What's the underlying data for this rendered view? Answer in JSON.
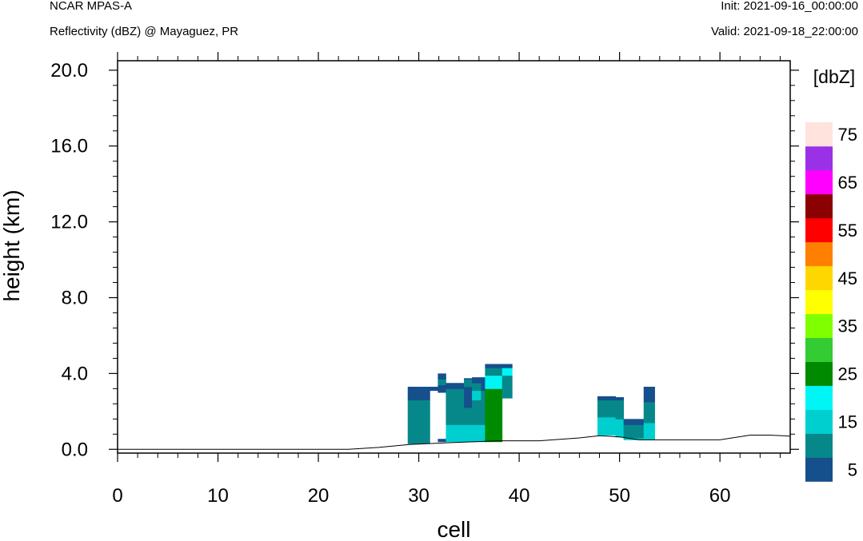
{
  "header": {
    "model": "NCAR MPAS-A",
    "subtitle": "Reflectivity (dBZ) @ Mayaguez, PR",
    "init": "Init: 2021-09-16_00:00:00",
    "valid": "Valid: 2021-09-18_22:00:00"
  },
  "chart_data": {
    "type": "heatmap",
    "xlabel": "cell",
    "ylabel": "height (km)",
    "xlim": [
      0,
      67
    ],
    "ylim": [
      -0.2,
      20.5
    ],
    "xticks": [
      0,
      10,
      20,
      30,
      40,
      50,
      60
    ],
    "yticks": [
      0.0,
      4.0,
      8.0,
      12.0,
      16.0,
      20.0
    ],
    "ytick_labels": [
      "0.0",
      "4.0",
      "8.0",
      "12.0",
      "16.0",
      "20.0"
    ],
    "colorbar": {
      "title": "[dbZ]",
      "levels": [
        5,
        10,
        15,
        20,
        25,
        30,
        35,
        40,
        45,
        50,
        55,
        60,
        65,
        70,
        75
      ],
      "labels": [
        "5",
        "15",
        "25",
        "35",
        "45",
        "55",
        "65",
        "75"
      ],
      "colors": [
        "#154f8c",
        "#06888a",
        "#00cfd0",
        "#00f5f5",
        "#008a00",
        "#33cc33",
        "#7fff00",
        "#ffff00",
        "#ffd700",
        "#ff8000",
        "#ff0000",
        "#8b0000",
        "#ff00ff",
        "#9a31e6",
        "#ffe3dc"
      ]
    },
    "terrain": [
      [
        0,
        0
      ],
      [
        23,
        0
      ],
      [
        26,
        0.1
      ],
      [
        29,
        0.25
      ],
      [
        33,
        0.35
      ],
      [
        38,
        0.45
      ],
      [
        42,
        0.45
      ],
      [
        46,
        0.6
      ],
      [
        48,
        0.72
      ],
      [
        50,
        0.65
      ],
      [
        52,
        0.5
      ],
      [
        60,
        0.5
      ],
      [
        63,
        0.75
      ],
      [
        65,
        0.75
      ],
      [
        67,
        0.7
      ]
    ],
    "columns": [
      {
        "x": [
          28.9,
          31.1
        ],
        "layers": [
          [
            0.3,
            2.6,
            10
          ],
          [
            2.6,
            3.3,
            5
          ]
        ]
      },
      {
        "x": [
          31.1,
          31.9
        ],
        "layers": [
          [
            3.1,
            3.3,
            5
          ]
        ]
      },
      {
        "x": [
          31.9,
          32.7
        ],
        "layers": [
          [
            0.4,
            0.55,
            5
          ],
          [
            3.0,
            3.4,
            5
          ],
          [
            3.4,
            3.7,
            10
          ],
          [
            3.7,
            4.0,
            5
          ]
        ]
      },
      {
        "x": [
          32.7,
          34.5
        ],
        "layers": [
          [
            0.4,
            1.3,
            15
          ],
          [
            1.3,
            3.2,
            10
          ],
          [
            3.2,
            3.5,
            5
          ]
        ]
      },
      {
        "x": [
          34.5,
          35.3
        ],
        "layers": [
          [
            0.4,
            1.3,
            15
          ],
          [
            1.3,
            2.2,
            10
          ],
          [
            2.2,
            3.3,
            5
          ],
          [
            3.3,
            3.7,
            10
          ],
          [
            3.7,
            3.75,
            5
          ]
        ]
      },
      {
        "x": [
          35.3,
          36.2
        ],
        "layers": [
          [
            0.4,
            1.3,
            15
          ],
          [
            1.3,
            2.6,
            10
          ],
          [
            2.6,
            3.1,
            15
          ],
          [
            3.1,
            3.5,
            10
          ],
          [
            3.5,
            3.8,
            5
          ]
        ]
      },
      {
        "x": [
          36.2,
          36.6
        ],
        "layers": [
          [
            0.4,
            1.3,
            15
          ],
          [
            1.3,
            3.1,
            10
          ],
          [
            3.1,
            3.8,
            5
          ]
        ]
      },
      {
        "x": [
          36.6,
          38.3
        ],
        "layers": [
          [
            0.4,
            3.2,
            25
          ],
          [
            3.2,
            3.9,
            20
          ],
          [
            3.9,
            4.3,
            10
          ],
          [
            4.3,
            4.5,
            5
          ]
        ]
      },
      {
        "x": [
          38.3,
          39.3
        ],
        "layers": [
          [
            2.7,
            3.9,
            10
          ],
          [
            3.9,
            4.3,
            20
          ],
          [
            4.3,
            4.5,
            5
          ]
        ]
      },
      {
        "x": [
          47.8,
          49.6
        ],
        "layers": [
          [
            0.75,
            1.7,
            15
          ],
          [
            1.7,
            2.6,
            10
          ],
          [
            2.6,
            2.8,
            5
          ]
        ]
      },
      {
        "x": [
          49.6,
          50.4
        ],
        "layers": [
          [
            0.65,
            1.6,
            15
          ],
          [
            1.6,
            2.6,
            10
          ],
          [
            2.6,
            2.75,
            5
          ]
        ]
      },
      {
        "x": [
          50.4,
          52.4
        ],
        "layers": [
          [
            0.5,
            0.6,
            15
          ],
          [
            0.6,
            1.3,
            10
          ],
          [
            1.3,
            1.6,
            5
          ]
        ]
      },
      {
        "x": [
          52.4,
          53.5
        ],
        "layers": [
          [
            0.5,
            1.4,
            15
          ],
          [
            1.4,
            2.5,
            10
          ],
          [
            2.5,
            3.3,
            5
          ]
        ]
      }
    ]
  }
}
